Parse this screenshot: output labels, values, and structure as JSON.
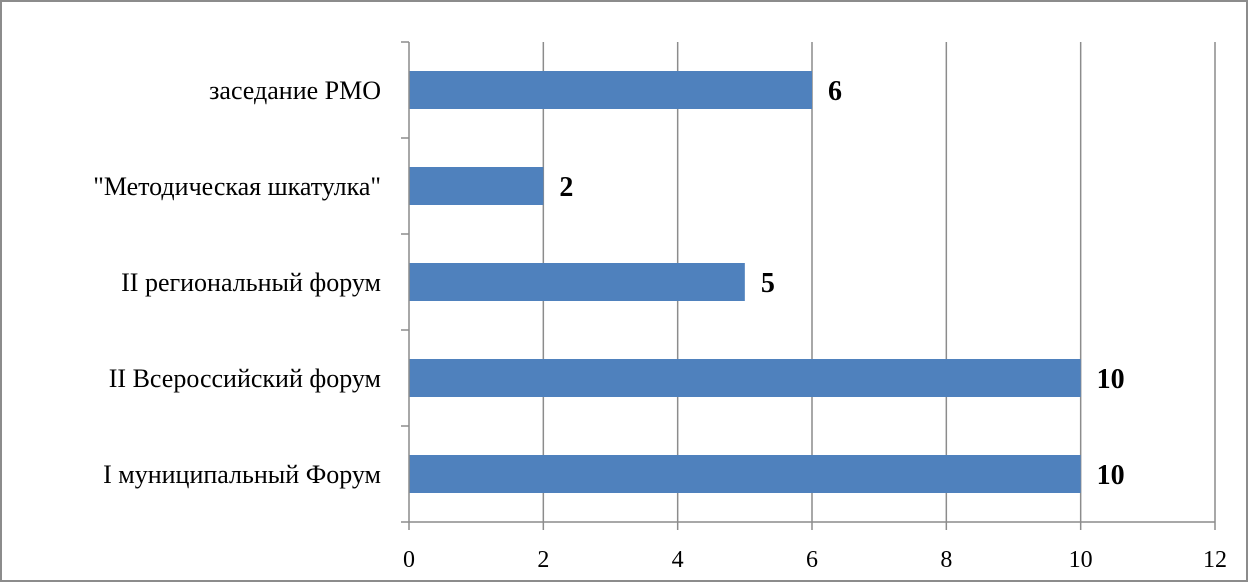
{
  "chart_data": {
    "type": "bar",
    "orientation": "horizontal",
    "title": "",
    "xlabel": "",
    "ylabel": "",
    "categories": [
      "I муниципальный Форум",
      "II Всероссийский форум",
      "II региональный форум",
      "\"Методическая шкатулка\"",
      "заседание РМО"
    ],
    "values": [
      10,
      10,
      5,
      2,
      6
    ],
    "data_labels": [
      "10",
      "10",
      "5",
      "2",
      "6"
    ],
    "xlim": [
      0,
      12
    ],
    "x_ticks": [
      0,
      2,
      4,
      6,
      8,
      10,
      12
    ],
    "x_tick_labels": [
      "0",
      "2",
      "4",
      "6",
      "8",
      "10",
      "12"
    ],
    "grid": "vertical",
    "legend": "none",
    "bar_color": "#4f81bd",
    "grid_color": "#8c8c8c",
    "frame_color": "#8c8c8c"
  }
}
